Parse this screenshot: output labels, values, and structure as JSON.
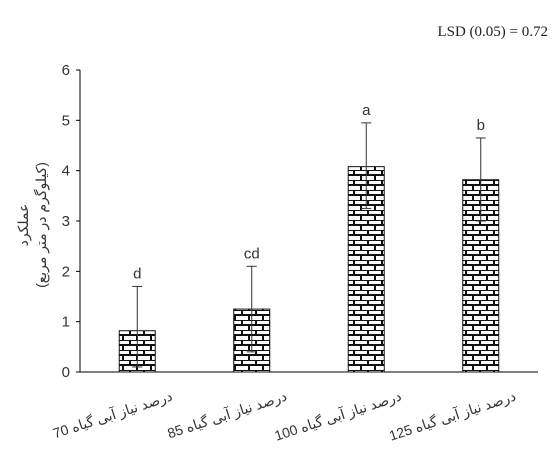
{
  "annotation": "LSD (0.05) = 0.72",
  "chart_data": {
    "type": "bar",
    "ylabel_line1": "عملکرد",
    "ylabel_line2": "(کیلوگرم در متر مربع)",
    "ylim": [
      0,
      6
    ],
    "yticks": [
      "0",
      "1",
      "2",
      "3",
      "4",
      "5",
      "6"
    ],
    "categories": [
      "70 درصد نیاز آبی گیاه",
      "85 درصد نیاز آبی گیاه",
      "100 درصد نیاز آبی گیاه",
      "125 درصد نیاز آبی گیاه"
    ],
    "values": [
      0.82,
      1.25,
      4.08,
      3.82
    ],
    "error_upper": [
      1.7,
      2.1,
      4.95,
      4.65
    ],
    "error_lower": [
      0.1,
      0.4,
      3.25,
      3.0
    ],
    "significance_letters": [
      "d",
      "cd",
      "a",
      "b"
    ],
    "bar_pattern": "brick",
    "grid": false
  }
}
